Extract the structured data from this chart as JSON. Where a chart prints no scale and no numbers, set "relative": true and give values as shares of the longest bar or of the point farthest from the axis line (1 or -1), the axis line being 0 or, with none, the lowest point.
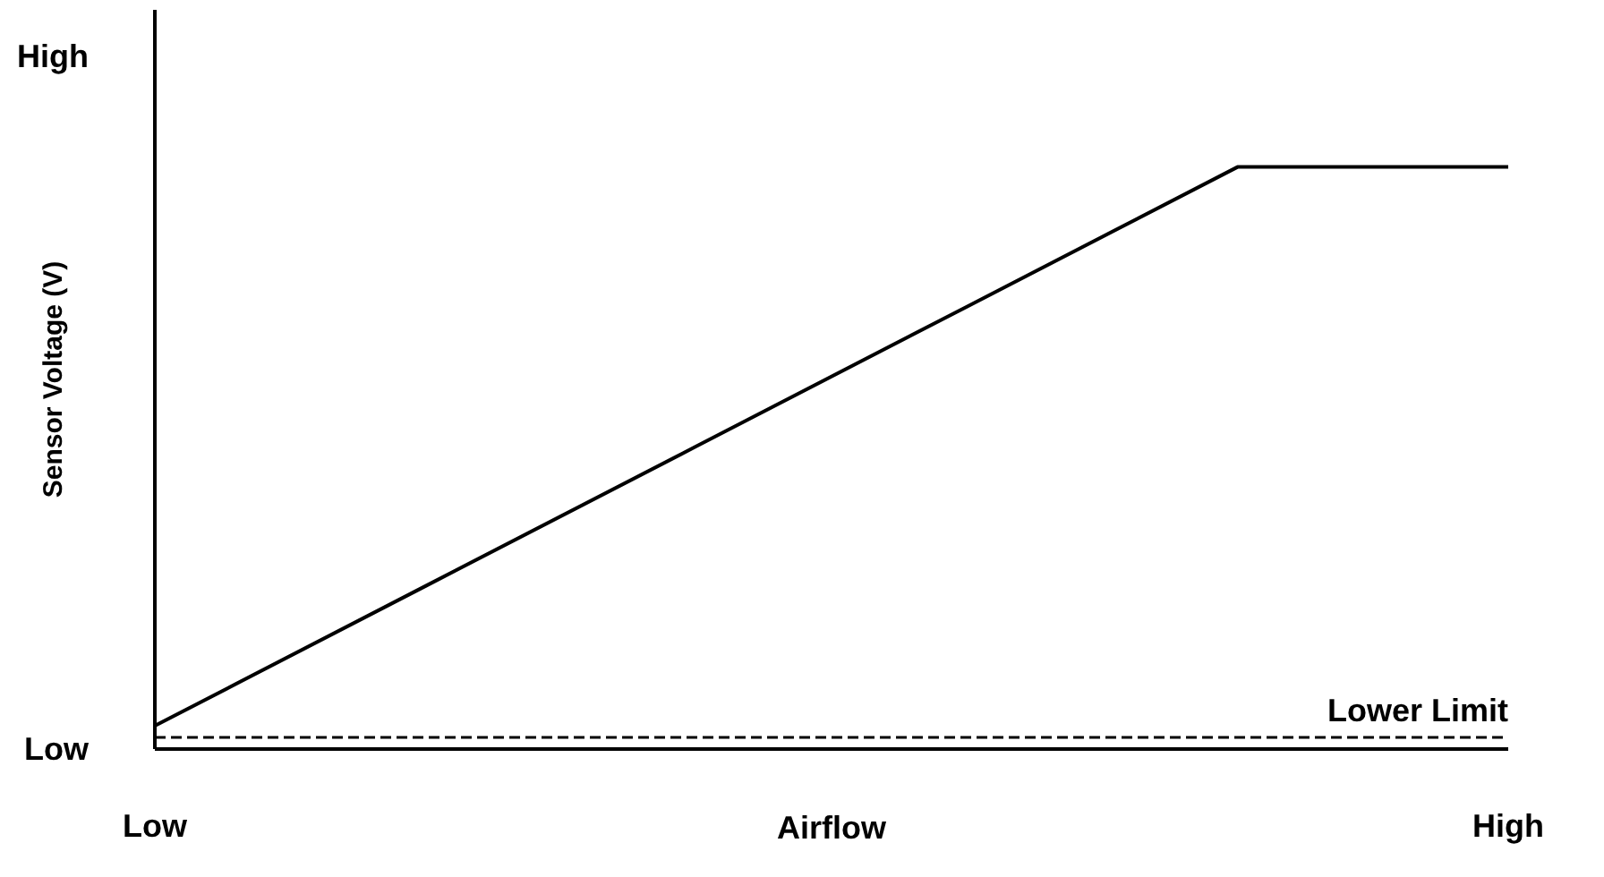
{
  "chart_data": {
    "type": "line",
    "relative": true,
    "xlabel": "Airflow",
    "ylabel": "Sensor Voltage (V)",
    "categories": [
      "Low",
      null,
      null,
      null,
      null,
      "High"
    ],
    "series": [
      {
        "color": "#000000",
        "values": [
          0.04,
          0.28,
          0.52,
          0.76,
          1,
          1
        ]
      }
    ],
    "ref_lines": [
      {
        "axis": "y",
        "value": 0.02,
        "label": "Lower Limit",
        "color": "#000000",
        "line_style": "dashed"
      }
    ],
    "annotations": [
      "High",
      "Low"
    ],
    "line_style": "solid",
    "marker": "none"
  }
}
